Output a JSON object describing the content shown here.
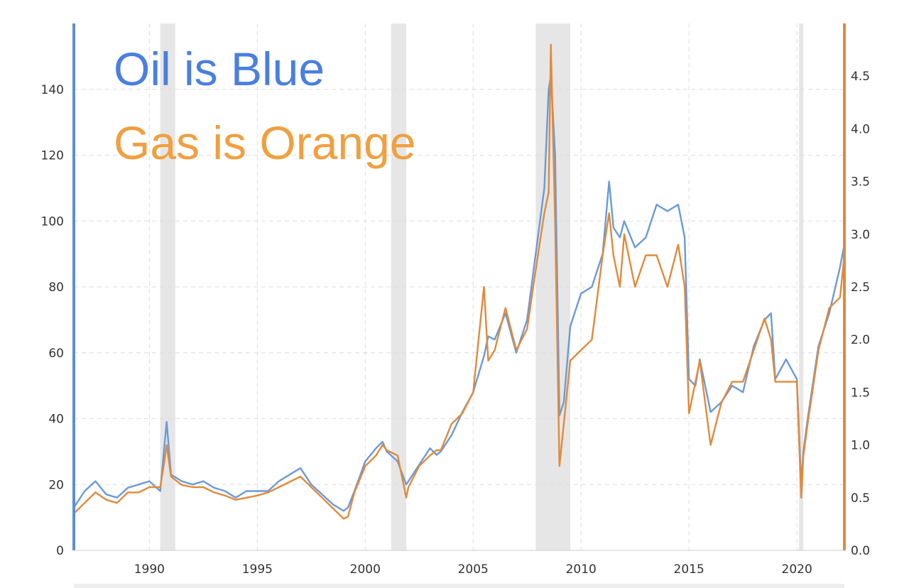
{
  "chart_data": {
    "type": "line",
    "annotations": [
      {
        "text": "Oil is Blue",
        "color": "#4a7fe0"
      },
      {
        "text": "Gas is Orange",
        "color": "#f0a040"
      }
    ],
    "x_axis": {
      "range": [
        1986.5,
        2022.2
      ],
      "ticks": [
        1990,
        1995,
        2000,
        2005,
        2010,
        2015,
        2020
      ],
      "tick_labels": [
        "1990",
        "1995",
        "2000",
        "2005",
        "2010",
        "2015",
        "2020"
      ]
    },
    "y_left": {
      "range": [
        0,
        160
      ],
      "ticks": [
        0,
        20,
        40,
        60,
        80,
        100,
        120,
        140
      ],
      "tick_labels": [
        "0",
        "20",
        "40",
        "60",
        "80",
        "100",
        "120",
        "140"
      ],
      "color": "#5b8fd6"
    },
    "y_right": {
      "range": [
        0,
        5
      ],
      "ticks": [
        0,
        0.5,
        1,
        1.5,
        2,
        2.5,
        3,
        3.5,
        4,
        4.5
      ],
      "tick_labels": [
        "0.0",
        "0.5",
        "1.0",
        "1.5",
        "2.0",
        "2.5",
        "3.0",
        "3.5",
        "4.0",
        "4.5"
      ],
      "color": "#e08a3c"
    },
    "grid": true,
    "recessions": [
      [
        1990.5,
        1991.2
      ],
      [
        2001.2,
        2001.9
      ],
      [
        2007.9,
        2009.5
      ],
      [
        2020.1,
        2020.3
      ]
    ],
    "series": [
      {
        "axis": "left",
        "color": "#6a9ad8",
        "x": [
          1986.5,
          1987.0,
          1987.5,
          1988.0,
          1988.5,
          1989.0,
          1989.5,
          1990.0,
          1990.5,
          1990.7,
          1990.8,
          1991.0,
          1991.5,
          1992.0,
          1992.5,
          1993.0,
          1993.5,
          1994.0,
          1994.5,
          1995.0,
          1995.5,
          1996.0,
          1996.5,
          1997.0,
          1997.5,
          1998.0,
          1998.5,
          1999.0,
          1999.2,
          1999.5,
          2000.0,
          2000.5,
          2000.8,
          2001.0,
          2001.5,
          2001.9,
          2002.0,
          2002.5,
          2003.0,
          2003.3,
          2003.5,
          2004.0,
          2004.5,
          2005.0,
          2005.5,
          2005.7,
          2006.0,
          2006.5,
          2007.0,
          2007.5,
          2008.0,
          2008.3,
          2008.5,
          2008.6,
          2008.8,
          2009.0,
          2009.2,
          2009.5,
          2010.0,
          2010.5,
          2011.0,
          2011.3,
          2011.5,
          2011.8,
          2012.0,
          2012.5,
          2013.0,
          2013.5,
          2014.0,
          2014.5,
          2014.8,
          2015.0,
          2015.3,
          2015.5,
          2016.0,
          2016.5,
          2017.0,
          2017.5,
          2018.0,
          2018.5,
          2018.8,
          2019.0,
          2019.5,
          2020.0,
          2020.2,
          2020.3,
          2020.5,
          2021.0,
          2021.5,
          2022.0,
          2022.2
        ],
        "y": [
          13,
          18,
          21,
          17,
          16,
          19,
          20,
          21,
          18,
          32,
          39,
          23,
          21,
          20,
          21,
          19,
          18,
          16,
          18,
          18,
          18,
          21,
          23,
          25,
          20,
          17,
          14,
          12,
          13,
          18,
          27,
          31,
          33,
          30,
          27,
          20,
          21,
          26,
          31,
          29,
          30,
          35,
          42,
          48,
          59,
          65,
          64,
          72,
          60,
          70,
          95,
          110,
          140,
          144,
          120,
          41,
          45,
          68,
          78,
          80,
          90,
          112,
          98,
          95,
          100,
          92,
          95,
          105,
          103,
          105,
          95,
          52,
          50,
          58,
          42,
          45,
          50,
          48,
          62,
          70,
          72,
          52,
          58,
          52,
          20,
          30,
          40,
          62,
          72,
          86,
          93
        ]
      },
      {
        "axis": "right",
        "color": "#e08a3c",
        "x": [
          1986.5,
          1987.0,
          1987.5,
          1988.0,
          1988.5,
          1989.0,
          1989.5,
          1990.0,
          1990.5,
          1990.7,
          1990.8,
          1991.0,
          1991.5,
          1992.0,
          1992.5,
          1993.0,
          1993.5,
          1994.0,
          1994.5,
          1995.0,
          1995.5,
          1996.0,
          1996.5,
          1997.0,
          1997.5,
          1998.0,
          1998.5,
          1999.0,
          1999.2,
          1999.5,
          2000.0,
          2000.5,
          2000.8,
          2001.0,
          2001.5,
          2001.9,
          2002.0,
          2002.5,
          2003.0,
          2003.3,
          2003.5,
          2004.0,
          2004.5,
          2005.0,
          2005.5,
          2005.7,
          2006.0,
          2006.5,
          2007.0,
          2007.5,
          2008.0,
          2008.3,
          2008.5,
          2008.6,
          2008.8,
          2009.0,
          2009.2,
          2009.5,
          2010.0,
          2010.5,
          2011.0,
          2011.3,
          2011.5,
          2011.8,
          2012.0,
          2012.5,
          2013.0,
          2013.5,
          2014.0,
          2014.5,
          2014.8,
          2015.0,
          2015.3,
          2015.5,
          2016.0,
          2016.5,
          2017.0,
          2017.5,
          2018.0,
          2018.5,
          2018.8,
          2019.0,
          2019.5,
          2020.0,
          2020.2,
          2020.3,
          2020.5,
          2021.0,
          2021.5,
          2022.0,
          2022.2
        ],
        "y": [
          0.35,
          0.45,
          0.55,
          0.48,
          0.45,
          0.55,
          0.55,
          0.6,
          0.6,
          0.85,
          1.0,
          0.7,
          0.62,
          0.6,
          0.6,
          0.55,
          0.52,
          0.48,
          0.5,
          0.52,
          0.55,
          0.6,
          0.65,
          0.7,
          0.6,
          0.5,
          0.4,
          0.3,
          0.32,
          0.55,
          0.8,
          0.9,
          1.0,
          0.95,
          0.9,
          0.5,
          0.6,
          0.8,
          0.9,
          0.95,
          0.95,
          1.2,
          1.3,
          1.5,
          2.5,
          1.8,
          1.9,
          2.3,
          1.9,
          2.1,
          2.8,
          3.2,
          3.4,
          4.8,
          3.1,
          0.8,
          1.2,
          1.8,
          1.9,
          2.0,
          2.8,
          3.2,
          2.8,
          2.5,
          3.0,
          2.5,
          2.8,
          2.8,
          2.5,
          2.9,
          2.5,
          1.3,
          1.6,
          1.8,
          1.0,
          1.4,
          1.6,
          1.6,
          1.9,
          2.2,
          2.0,
          1.6,
          1.6,
          1.6,
          0.5,
          0.9,
          1.2,
          1.9,
          2.3,
          2.4,
          2.8
        ]
      }
    ]
  }
}
